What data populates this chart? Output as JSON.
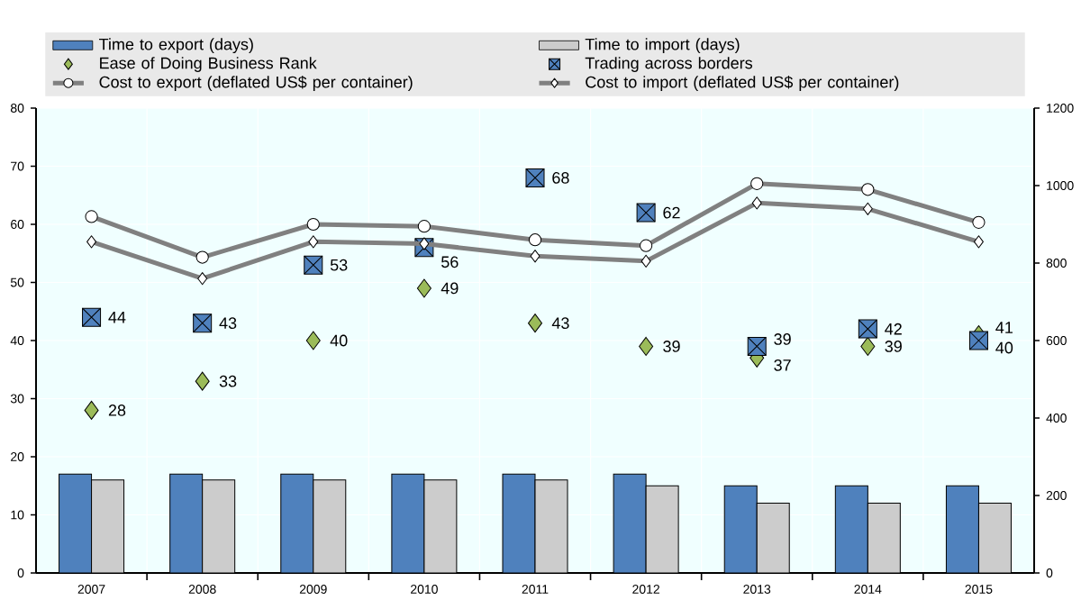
{
  "chart_data": {
    "type": "bar",
    "categories": [
      "2007",
      "2008",
      "2009",
      "2010",
      "2011",
      "2012",
      "2013",
      "2014",
      "2015"
    ],
    "series": [
      {
        "name": "Time to export (days)",
        "color": "#4f81bd",
        "values": [
          17,
          17,
          17,
          17,
          17,
          17,
          15,
          15,
          15
        ]
      },
      {
        "name": "Time to import (days)",
        "color": "#cccccc",
        "values": [
          16,
          16,
          16,
          16,
          16,
          15,
          12,
          12,
          12
        ]
      },
      {
        "name": "Ease of Doing Business Rank",
        "type": "scatter",
        "color": "#9bbb59",
        "marker": "diamond",
        "values": [
          28,
          33,
          40,
          49,
          43,
          39,
          37,
          39,
          41
        ],
        "value_labels": [
          "28",
          "33",
          "40",
          "49",
          "43",
          "39",
          "37",
          "39",
          "41"
        ]
      },
      {
        "name": "Trading across borders",
        "type": "scatter",
        "color": "#4f81bd",
        "marker": "square",
        "values": [
          44,
          43,
          53,
          56,
          68,
          62,
          39,
          42,
          40
        ],
        "value_labels": [
          "44",
          "43",
          "53",
          "56",
          "68",
          "62",
          "39",
          "42",
          "40"
        ]
      },
      {
        "name": "Cost to export (deflated US$ per container)",
        "type": "line",
        "axis": "y2",
        "color": "#808080",
        "marker": "circle",
        "values": [
          920,
          815,
          900,
          895,
          860,
          845,
          1005,
          990,
          905
        ]
      },
      {
        "name": "Cost to import (deflated US$ per container)",
        "type": "line",
        "axis": "y2",
        "color": "#808080",
        "marker": "diamond",
        "values": [
          855,
          760,
          855,
          850,
          818,
          805,
          955,
          940,
          855
        ]
      }
    ],
    "ylim": [
      0,
      80
    ],
    "yticks": [
      0,
      10,
      20,
      30,
      40,
      50,
      60,
      70,
      80
    ],
    "y2lim": [
      0,
      1200
    ],
    "y2ticks": [
      0,
      200,
      400,
      600,
      800,
      1000,
      1200
    ],
    "grid": true,
    "legend": "top"
  }
}
